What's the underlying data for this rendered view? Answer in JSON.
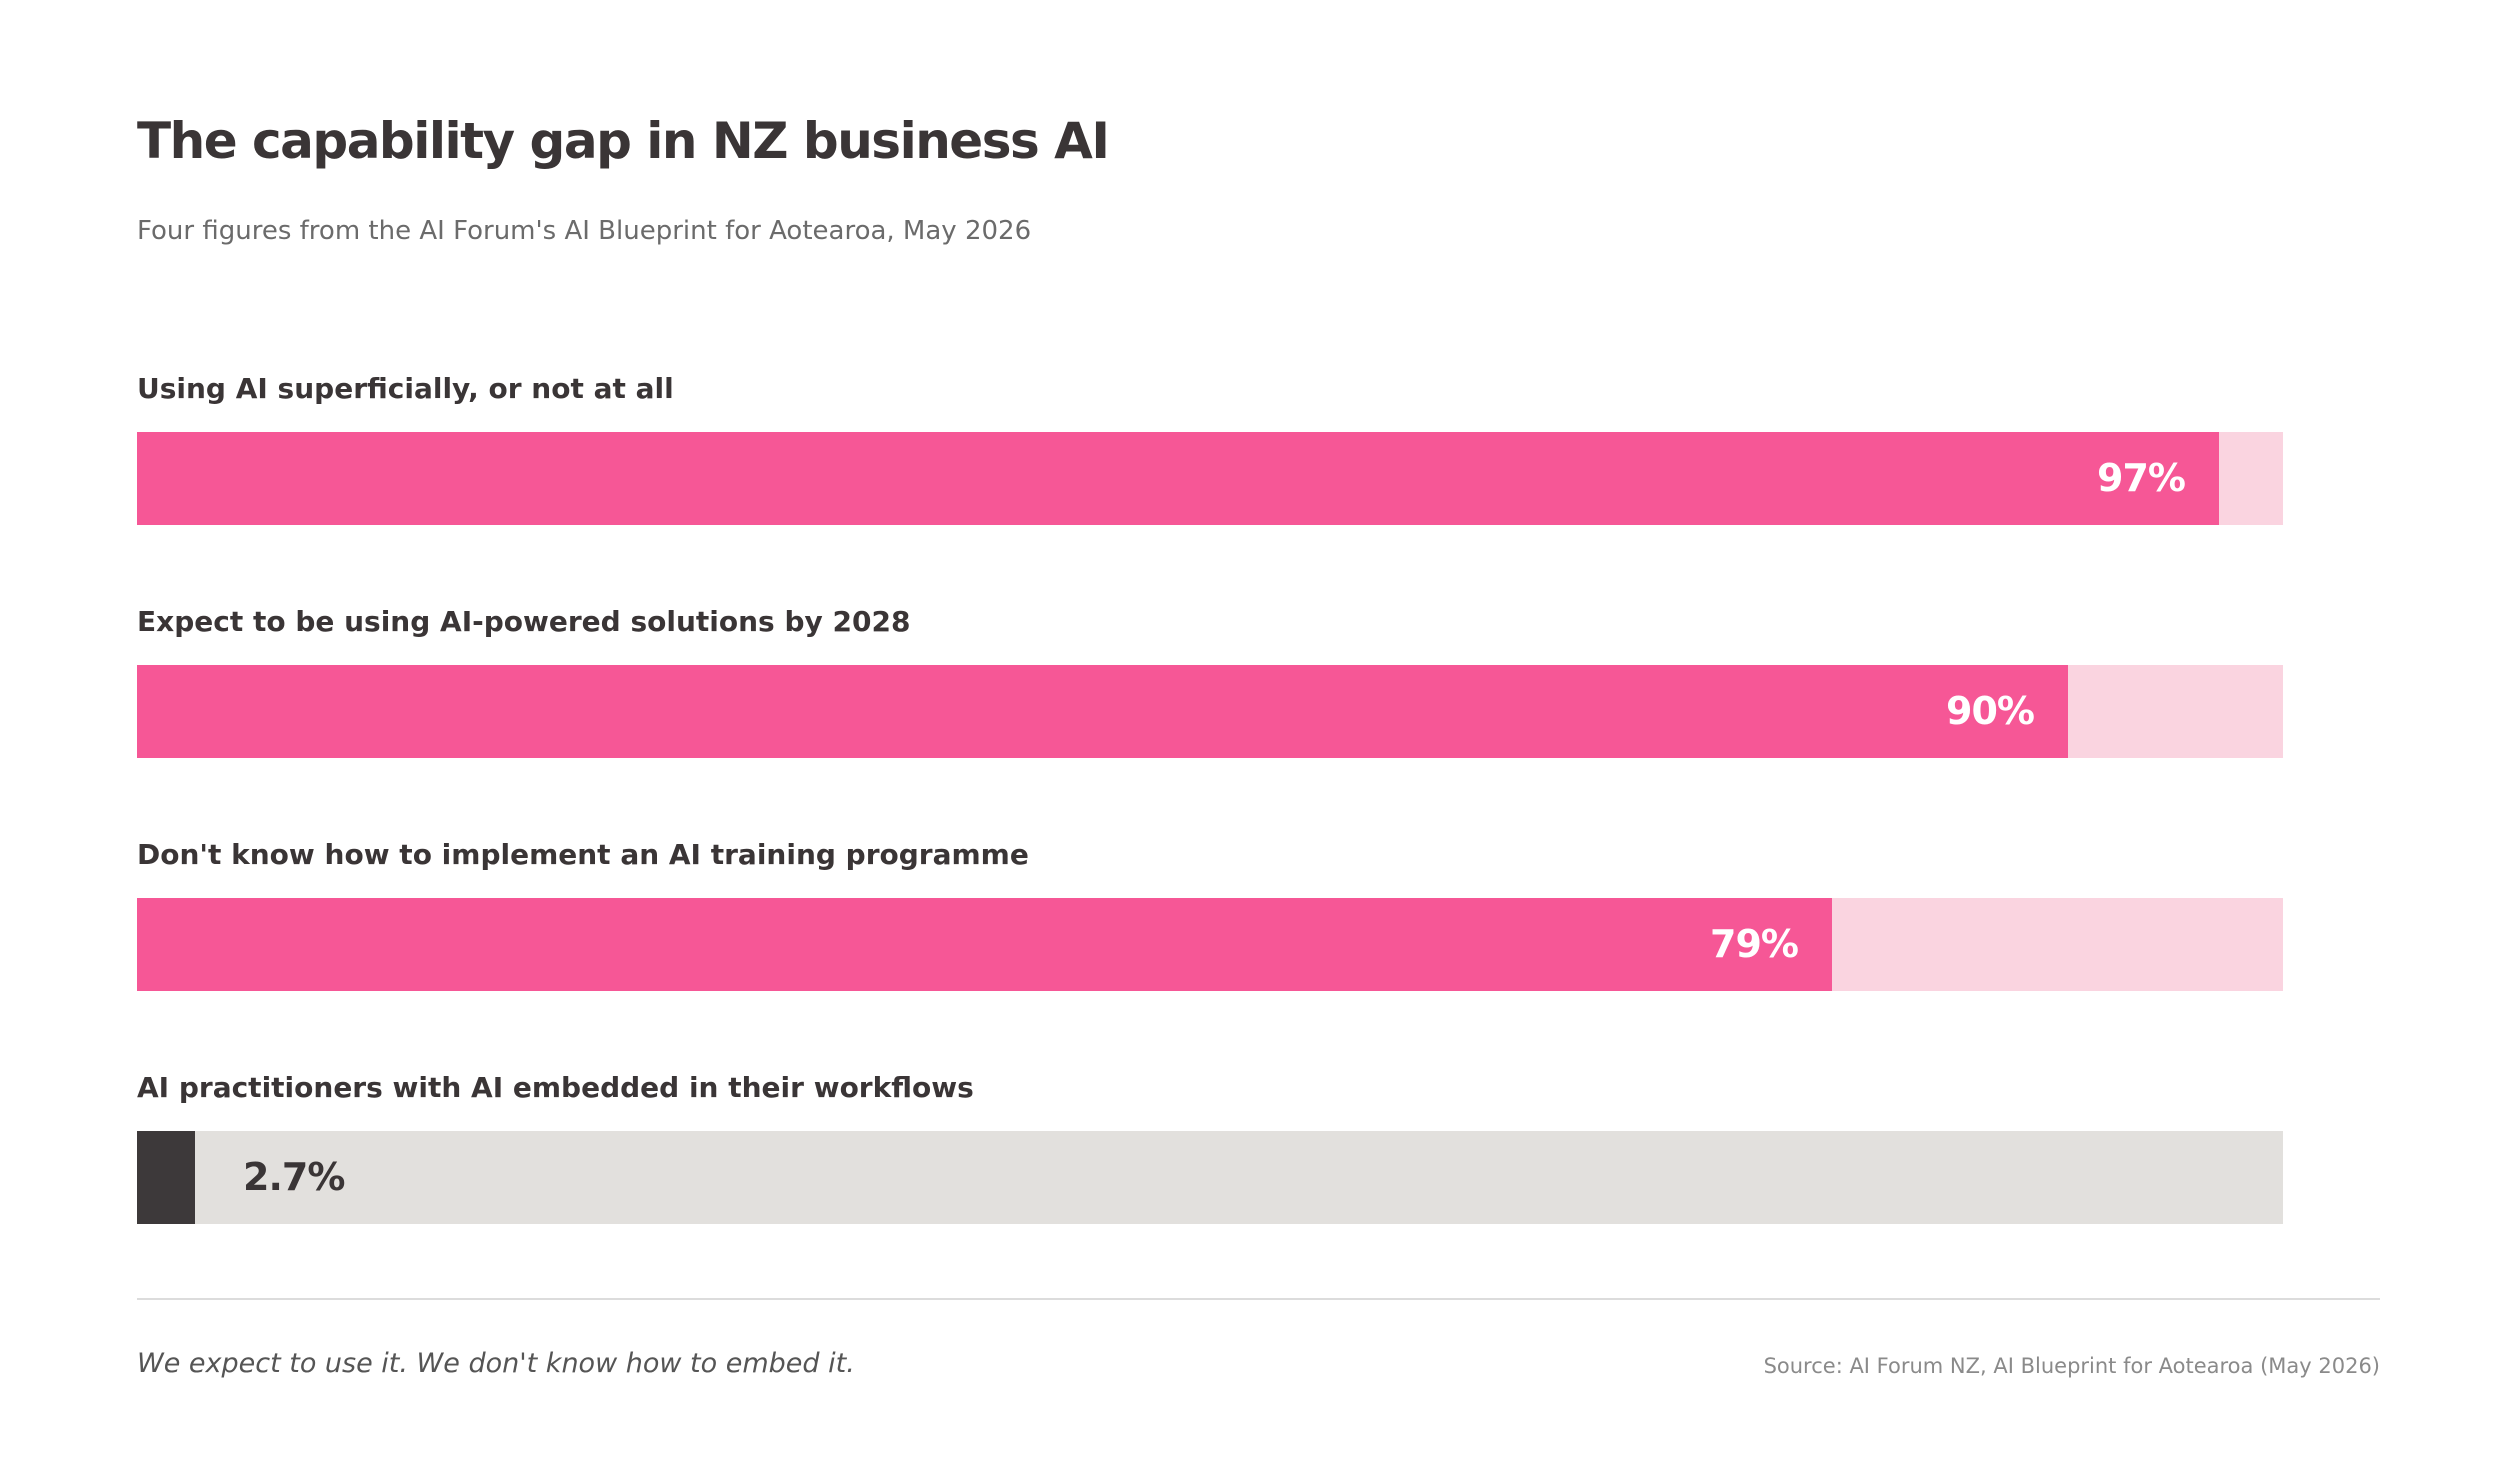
{
  "header": {
    "title": "The capability gap in NZ business AI",
    "subtitle": "Four figures from the AI Forum's AI Blueprint for Aotearoa, May 2026"
  },
  "chart_data": {
    "type": "bar",
    "orientation": "horizontal",
    "unit": "%",
    "xlim": [
      0,
      100
    ],
    "categories": [
      "Using AI superficially, or not at all",
      "Expect to be using AI-powered solutions by 2028",
      "Don't know how to implement an AI training programme",
      "AI practitioners with AI embedded in their workflows"
    ],
    "values": [
      97,
      90,
      79,
      2.7
    ],
    "value_labels": [
      "97%",
      "90%",
      "79%",
      "2.7%"
    ],
    "fill_colors": [
      "#f65796",
      "#f65796",
      "#f65796",
      "#3d393a"
    ],
    "track_colors": [
      "#fad4e0",
      "#fad4e0",
      "#fad4e0",
      "#e2e0dd"
    ],
    "value_label_colors": [
      "#ffffff",
      "#ffffff",
      "#ffffff",
      "#3a3536"
    ],
    "grid": false,
    "legend": "none"
  },
  "footer": {
    "note": "We expect to use it. We don't know how to embed it.",
    "source": "Source: AI Forum NZ, AI Blueprint for Aotearoa (May 2026)"
  }
}
